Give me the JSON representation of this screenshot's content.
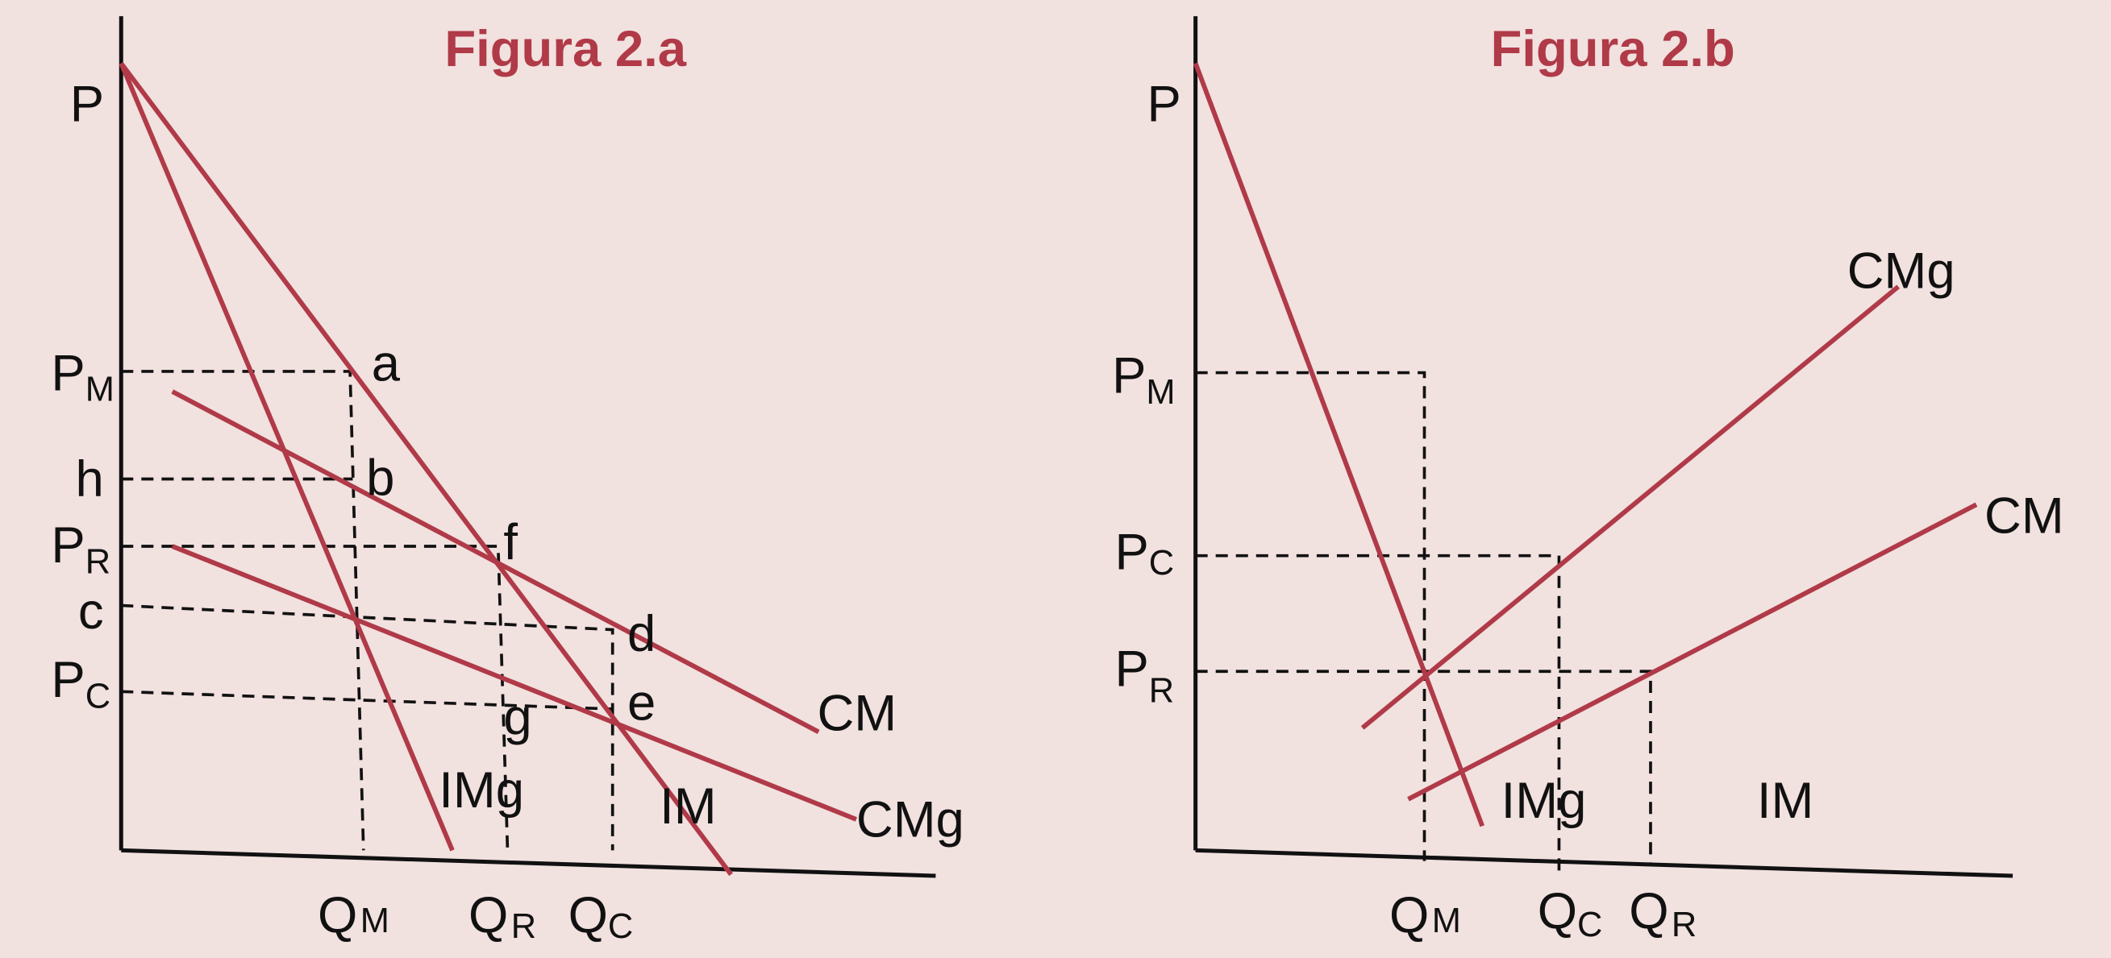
{
  "figures": [
    {
      "title": "Figura 2.a",
      "axis_label": "P",
      "price_labels": [
        {
          "base": "P",
          "sub": "M"
        },
        {
          "base": "h"
        },
        {
          "base": "P",
          "sub": "R"
        },
        {
          "base": "c"
        },
        {
          "base": "P",
          "sub": "C"
        }
      ],
      "quantity_labels": [
        {
          "base": "Q",
          "sub": "M"
        },
        {
          "base": "Q",
          "sub": "R"
        },
        {
          "base": "Q",
          "sub": "C"
        }
      ],
      "point_labels": [
        "a",
        "b",
        "f",
        "d",
        "e",
        "g"
      ],
      "curve_labels": [
        "CM",
        "CMg",
        "IMg",
        "IM"
      ]
    },
    {
      "title": "Figura 2.b",
      "axis_label": "P",
      "price_labels": [
        {
          "base": "P",
          "sub": "M"
        },
        {
          "base": "P",
          "sub": "C"
        },
        {
          "base": "P",
          "sub": "R"
        }
      ],
      "quantity_labels": [
        {
          "base": "Q",
          "sub": "M"
        },
        {
          "base": "Q",
          "sub": "C"
        },
        {
          "base": "Q",
          "sub": "R"
        }
      ],
      "curve_labels": [
        "CMg",
        "CM",
        "IMg",
        "IM"
      ]
    }
  ]
}
